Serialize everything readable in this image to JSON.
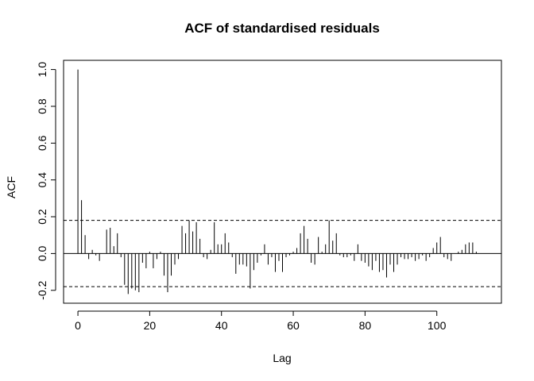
{
  "chart_data": {
    "type": "bar",
    "title": "ACF of standardised residuals",
    "xlabel": "Lag",
    "ylabel": "ACF",
    "xlim": [
      -4,
      118
    ],
    "ylim": [
      -0.27,
      1.05
    ],
    "x_ticks": [
      0,
      20,
      40,
      60,
      80,
      100
    ],
    "y_ticks": [
      -0.2,
      0.0,
      0.2,
      0.4,
      0.6,
      0.8,
      1.0
    ],
    "x_tick_labels": [
      "0",
      "20",
      "40",
      "60",
      "80",
      "100"
    ],
    "y_tick_labels": [
      "-0.2",
      "0.0",
      "0.2",
      "0.4",
      "0.6",
      "0.8",
      "1.0"
    ],
    "confidence_bounds": [
      0.18,
      -0.18
    ],
    "zero_line": 0,
    "grid": false,
    "lags": [
      0,
      1,
      2,
      3,
      4,
      5,
      6,
      7,
      8,
      9,
      10,
      11,
      12,
      13,
      14,
      15,
      16,
      17,
      18,
      19,
      20,
      21,
      22,
      23,
      24,
      25,
      26,
      27,
      28,
      29,
      30,
      31,
      32,
      33,
      34,
      35,
      36,
      37,
      38,
      39,
      40,
      41,
      42,
      43,
      44,
      45,
      46,
      47,
      48,
      49,
      50,
      51,
      52,
      53,
      54,
      55,
      56,
      57,
      58,
      59,
      60,
      61,
      62,
      63,
      64,
      65,
      66,
      67,
      68,
      69,
      70,
      71,
      72,
      73,
      74,
      75,
      76,
      77,
      78,
      79,
      80,
      81,
      82,
      83,
      84,
      85,
      86,
      87,
      88,
      89,
      90,
      91,
      92,
      93,
      94,
      95,
      96,
      97,
      98,
      99,
      100,
      101,
      102,
      103,
      104,
      105,
      106,
      107,
      108,
      109,
      110,
      111
    ],
    "values": [
      1.0,
      0.29,
      0.1,
      -0.03,
      0.02,
      -0.01,
      -0.04,
      0.0,
      0.13,
      0.14,
      0.04,
      0.11,
      -0.02,
      -0.17,
      -0.22,
      -0.19,
      -0.2,
      -0.21,
      -0.05,
      -0.08,
      0.01,
      -0.08,
      -0.03,
      0.01,
      -0.12,
      -0.21,
      -0.12,
      -0.06,
      -0.03,
      0.15,
      0.11,
      0.18,
      0.12,
      0.17,
      0.08,
      -0.02,
      -0.03,
      0.02,
      0.17,
      0.05,
      0.05,
      0.11,
      0.06,
      -0.02,
      -0.11,
      -0.06,
      -0.06,
      -0.07,
      -0.19,
      -0.09,
      -0.05,
      -0.01,
      0.05,
      -0.06,
      -0.02,
      -0.1,
      -0.04,
      -0.1,
      -0.02,
      -0.01,
      0.01,
      0.03,
      0.11,
      0.15,
      0.08,
      -0.05,
      -0.06,
      0.09,
      0.01,
      0.05,
      0.18,
      0.07,
      0.11,
      -0.01,
      -0.02,
      -0.02,
      -0.01,
      -0.04,
      0.05,
      -0.04,
      -0.05,
      -0.07,
      -0.09,
      -0.04,
      -0.1,
      -0.09,
      -0.13,
      -0.06,
      -0.1,
      -0.06,
      -0.02,
      -0.03,
      -0.03,
      -0.02,
      -0.04,
      -0.03,
      -0.01,
      -0.04,
      -0.02,
      0.03,
      0.06,
      0.09,
      -0.02,
      -0.03,
      -0.04,
      0.0,
      0.01,
      0.02,
      0.05,
      0.06,
      0.06,
      0.01
    ]
  }
}
